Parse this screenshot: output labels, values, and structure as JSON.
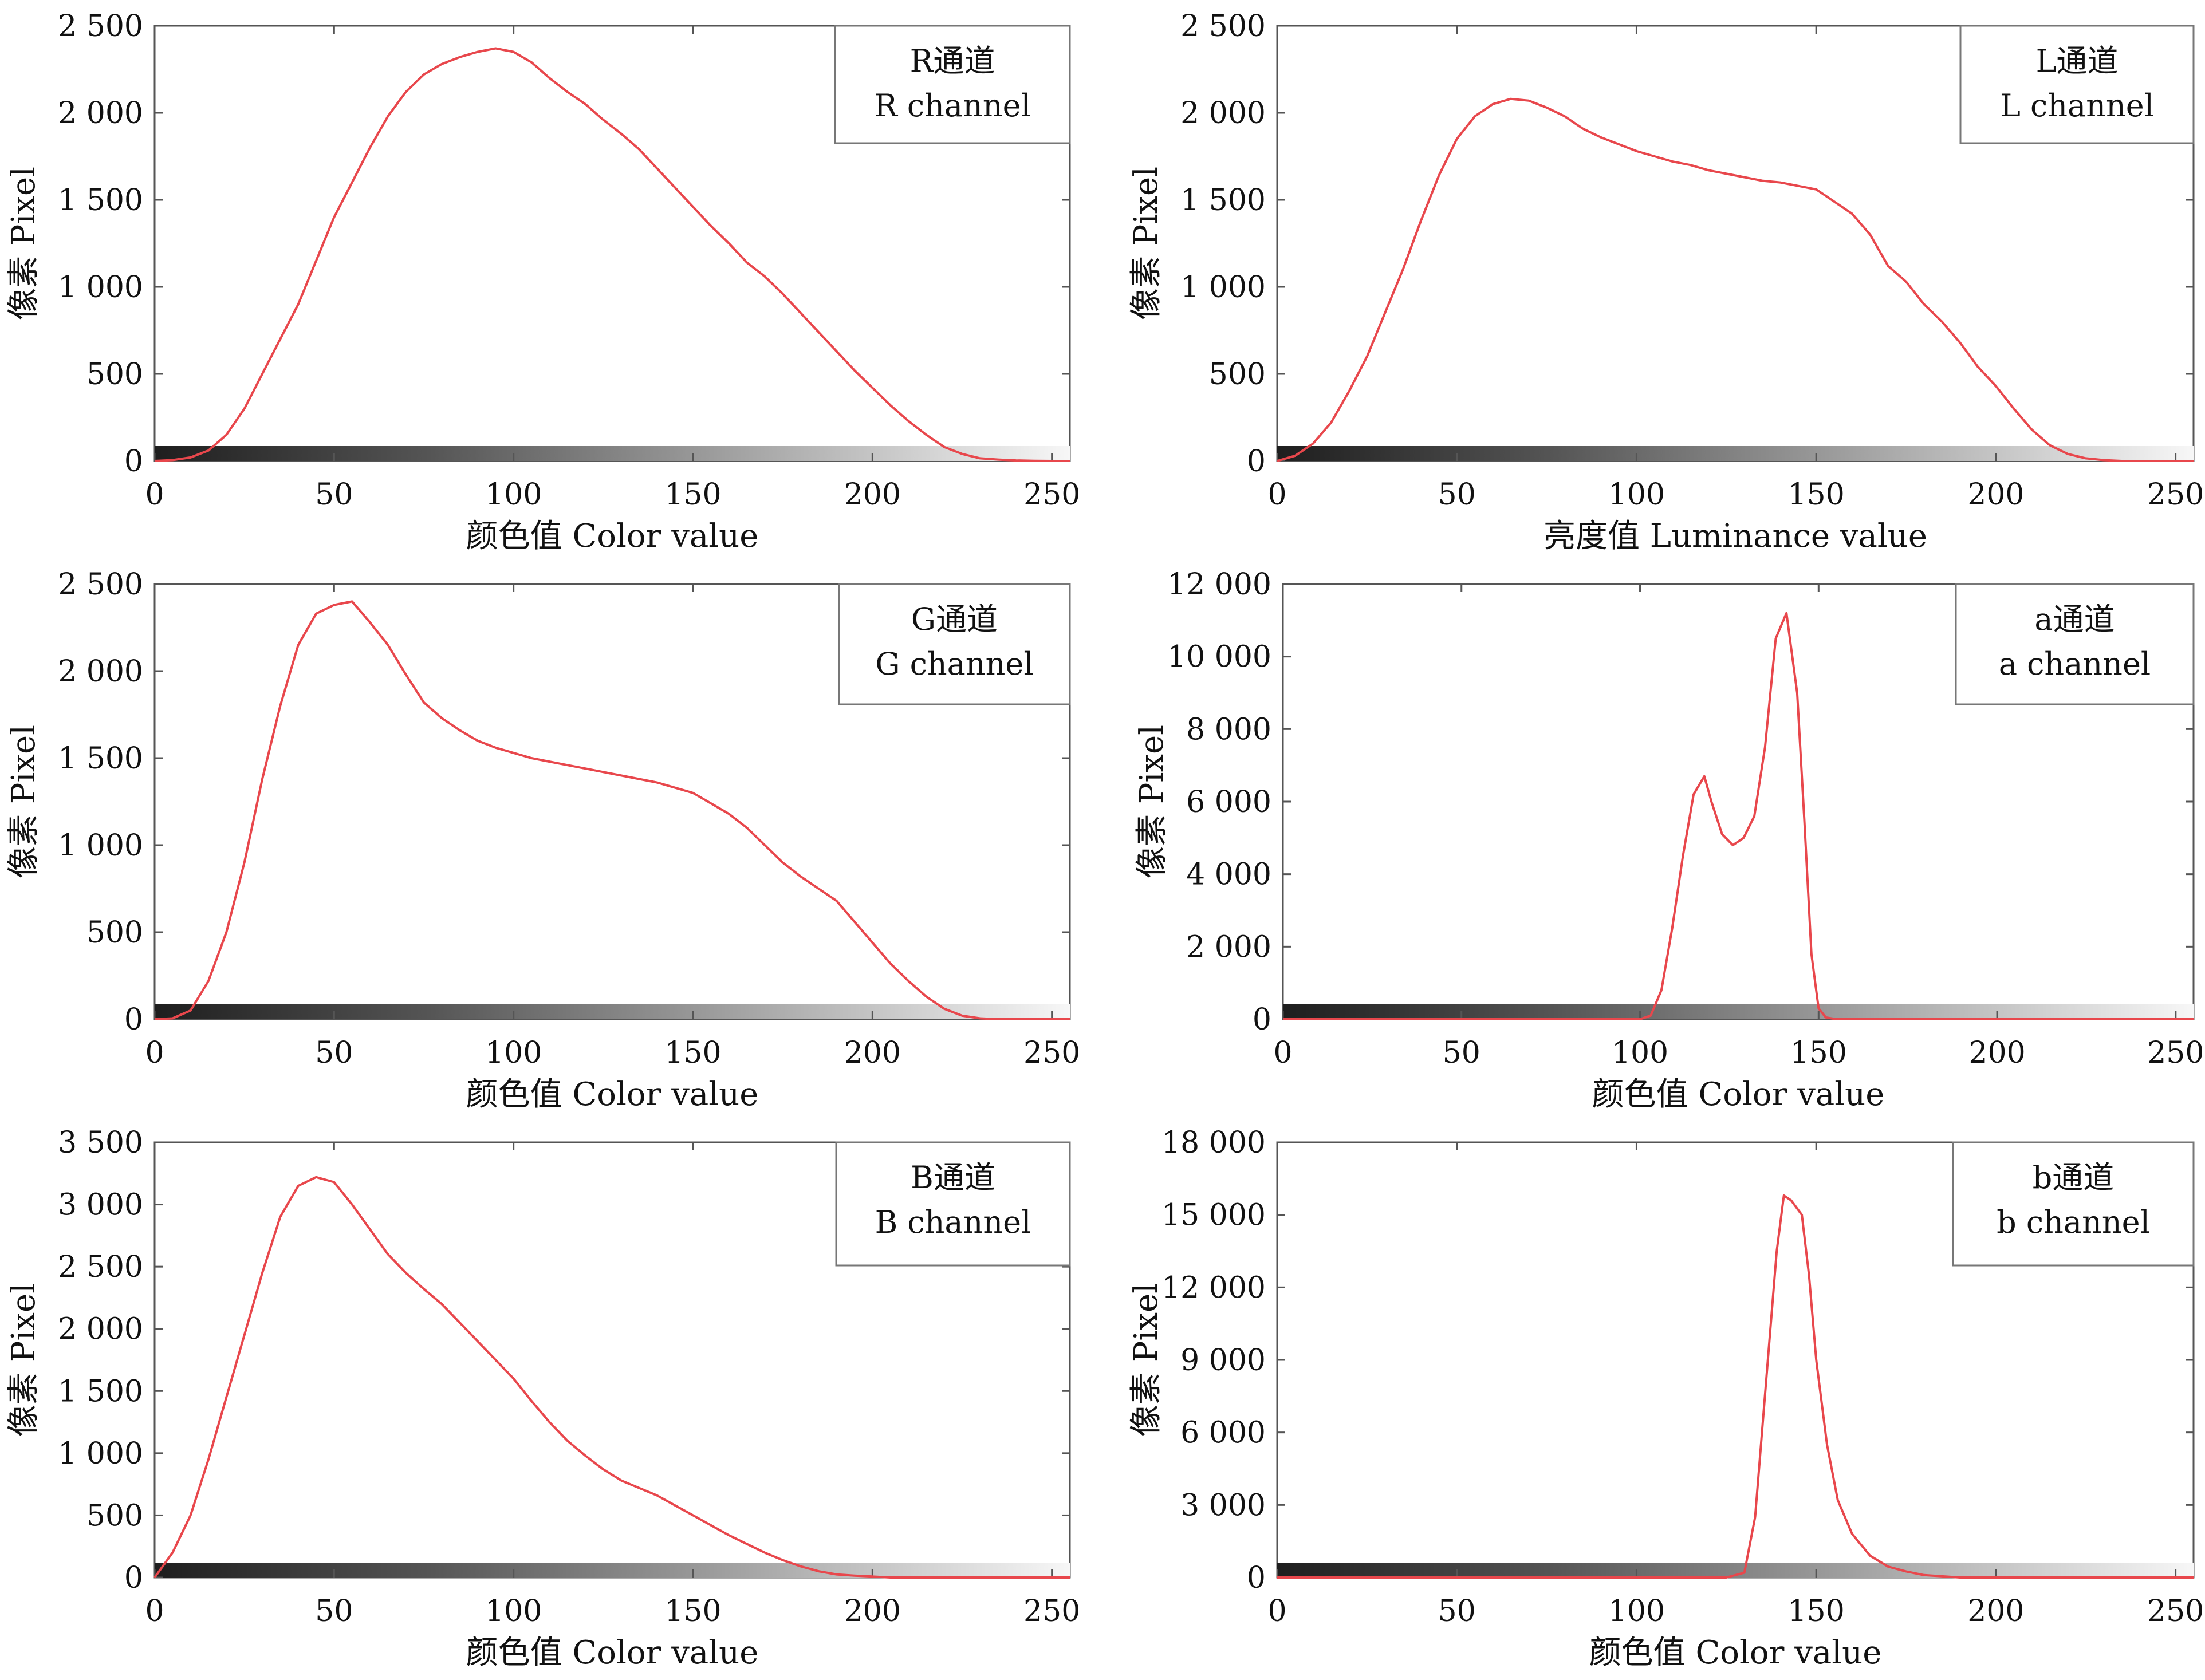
{
  "chart_data": [
    {
      "type": "area",
      "id": "r",
      "legend": [
        "R通道",
        "R channel"
      ],
      "xlabel": "颜色值 Color value",
      "ylabel": "像素 Pixel",
      "xlim": [
        0,
        255
      ],
      "ylim": [
        0,
        2500
      ],
      "xticks": [
        0,
        50,
        100,
        150,
        200,
        250
      ],
      "yticks": [
        0,
        500,
        1000,
        1500,
        2000,
        2500
      ],
      "yticklabels": [
        "0",
        "500",
        "1 000",
        "1 500",
        "2 000",
        "2 500"
      ],
      "line_color": "#e8474c",
      "series": [
        {
          "x": [
            0,
            5,
            10,
            15,
            20,
            25,
            30,
            35,
            40,
            45,
            50,
            55,
            60,
            65,
            70,
            75,
            80,
            85,
            90,
            95,
            100,
            105,
            110,
            115,
            120,
            125,
            130,
            135,
            140,
            145,
            150,
            155,
            160,
            165,
            170,
            175,
            180,
            185,
            190,
            195,
            200,
            205,
            210,
            215,
            220,
            225,
            230,
            235,
            240,
            245,
            250,
            255
          ],
          "values": [
            0,
            5,
            20,
            60,
            150,
            300,
            500,
            700,
            900,
            1150,
            1400,
            1600,
            1800,
            1980,
            2120,
            2220,
            2280,
            2320,
            2350,
            2370,
            2350,
            2290,
            2200,
            2120,
            2050,
            1960,
            1880,
            1790,
            1680,
            1570,
            1460,
            1350,
            1250,
            1140,
            1060,
            960,
            850,
            740,
            630,
            520,
            420,
            320,
            230,
            150,
            80,
            40,
            15,
            8,
            3,
            1,
            0,
            0
          ]
        }
      ]
    },
    {
      "type": "area",
      "id": "l",
      "legend": [
        "L通道",
        "L channel"
      ],
      "xlabel": "亮度值 Luminance value",
      "ylabel": "像素 Pixel",
      "xlim": [
        0,
        255
      ],
      "ylim": [
        0,
        2500
      ],
      "xticks": [
        0,
        50,
        100,
        150,
        200,
        250
      ],
      "yticks": [
        0,
        500,
        1000,
        1500,
        2000,
        2500
      ],
      "yticklabels": [
        "0",
        "500",
        "1 000",
        "1 500",
        "2 000",
        "2 500"
      ],
      "line_color": "#e8474c",
      "series": [
        {
          "x": [
            0,
            5,
            10,
            15,
            20,
            25,
            30,
            35,
            40,
            45,
            50,
            55,
            60,
            65,
            70,
            75,
            80,
            85,
            90,
            95,
            100,
            105,
            110,
            115,
            120,
            125,
            130,
            135,
            140,
            145,
            150,
            155,
            160,
            165,
            170,
            175,
            180,
            185,
            190,
            195,
            200,
            205,
            210,
            215,
            220,
            225,
            230,
            235,
            240,
            245,
            250,
            255
          ],
          "values": [
            0,
            30,
            100,
            220,
            400,
            600,
            850,
            1100,
            1380,
            1640,
            1850,
            1980,
            2050,
            2080,
            2070,
            2030,
            1980,
            1910,
            1860,
            1820,
            1780,
            1750,
            1720,
            1700,
            1670,
            1650,
            1630,
            1610,
            1600,
            1580,
            1560,
            1490,
            1420,
            1300,
            1120,
            1030,
            900,
            800,
            680,
            540,
            430,
            300,
            180,
            90,
            40,
            15,
            5,
            0,
            0,
            0,
            0,
            0
          ]
        }
      ]
    },
    {
      "type": "area",
      "id": "g",
      "legend": [
        "G通道",
        "G channel"
      ],
      "xlabel": "颜色值 Color value",
      "ylabel": "像素 Pixel",
      "xlim": [
        0,
        255
      ],
      "ylim": [
        0,
        2500
      ],
      "xticks": [
        0,
        50,
        100,
        150,
        200,
        250
      ],
      "yticks": [
        0,
        500,
        1000,
        1500,
        2000,
        2500
      ],
      "yticklabels": [
        "0",
        "500",
        "1 000",
        "1 500",
        "2 000",
        "2 500"
      ],
      "line_color": "#e8474c",
      "series": [
        {
          "x": [
            0,
            5,
            10,
            15,
            20,
            25,
            30,
            35,
            40,
            45,
            50,
            55,
            60,
            65,
            70,
            75,
            80,
            85,
            90,
            95,
            100,
            105,
            110,
            115,
            120,
            125,
            130,
            135,
            140,
            145,
            150,
            155,
            160,
            165,
            170,
            175,
            180,
            185,
            190,
            195,
            200,
            205,
            210,
            215,
            220,
            225,
            230,
            235,
            240,
            245,
            250,
            255
          ],
          "values": [
            0,
            5,
            50,
            220,
            500,
            900,
            1380,
            1800,
            2150,
            2330,
            2380,
            2400,
            2280,
            2150,
            1980,
            1820,
            1730,
            1660,
            1600,
            1560,
            1530,
            1500,
            1480,
            1460,
            1440,
            1420,
            1400,
            1380,
            1360,
            1330,
            1300,
            1240,
            1180,
            1100,
            1000,
            900,
            820,
            750,
            680,
            560,
            440,
            320,
            220,
            130,
            60,
            20,
            5,
            0,
            0,
            0,
            0,
            0
          ]
        }
      ]
    },
    {
      "type": "area",
      "id": "a",
      "legend": [
        "a通道",
        "a channel"
      ],
      "xlabel": "颜色值 Color value",
      "ylabel": "像素 Pixel",
      "xlim": [
        0,
        255
      ],
      "ylim": [
        0,
        12000
      ],
      "xticks": [
        0,
        50,
        100,
        150,
        200,
        250
      ],
      "yticks": [
        0,
        2000,
        4000,
        6000,
        8000,
        10000,
        12000
      ],
      "yticklabels": [
        "0",
        "2 000",
        "4 000",
        "6 000",
        "8 000",
        "10 000",
        "12 000"
      ],
      "line_color": "#e8474c",
      "series": [
        {
          "x": [
            0,
            95,
            100,
            103,
            106,
            109,
            112,
            115,
            118,
            120,
            123,
            126,
            129,
            132,
            135,
            138,
            141,
            144,
            146,
            148,
            150,
            152,
            155,
            255
          ],
          "values": [
            0,
            0,
            0,
            100,
            800,
            2500,
            4500,
            6200,
            6700,
            6000,
            5100,
            4800,
            5000,
            5600,
            7500,
            10500,
            11200,
            9000,
            5500,
            1800,
            300,
            50,
            0,
            0
          ]
        }
      ]
    },
    {
      "type": "area",
      "id": "b",
      "legend": [
        "B通道",
        "B channel"
      ],
      "xlabel": "颜色值 Color value",
      "ylabel": "像素 Pixel",
      "xlim": [
        0,
        255
      ],
      "ylim": [
        0,
        3500
      ],
      "xticks": [
        0,
        50,
        100,
        150,
        200,
        250
      ],
      "yticks": [
        0,
        500,
        1000,
        1500,
        2000,
        2500,
        3000,
        3500
      ],
      "yticklabels": [
        "0",
        "500",
        "1 000",
        "1 500",
        "2 000",
        "2 500",
        "3 000",
        "3 500"
      ],
      "line_color": "#e8474c",
      "series": [
        {
          "x": [
            0,
            5,
            10,
            15,
            20,
            25,
            30,
            35,
            40,
            45,
            50,
            55,
            60,
            65,
            70,
            75,
            80,
            85,
            90,
            95,
            100,
            105,
            110,
            115,
            120,
            125,
            130,
            135,
            140,
            145,
            150,
            155,
            160,
            165,
            170,
            175,
            180,
            185,
            190,
            195,
            200,
            205,
            210,
            215,
            220,
            225,
            230,
            235,
            240,
            245,
            250,
            255
          ],
          "values": [
            0,
            200,
            500,
            950,
            1450,
            1950,
            2450,
            2900,
            3150,
            3220,
            3180,
            3000,
            2800,
            2600,
            2450,
            2320,
            2200,
            2050,
            1900,
            1750,
            1600,
            1420,
            1250,
            1100,
            980,
            870,
            780,
            720,
            660,
            580,
            500,
            420,
            340,
            270,
            200,
            140,
            90,
            50,
            25,
            15,
            8,
            0,
            0,
            0,
            0,
            0,
            0,
            0,
            0,
            0,
            0,
            0
          ]
        }
      ]
    },
    {
      "type": "area",
      "id": "b2",
      "legend": [
        "b通道",
        "b channel"
      ],
      "xlabel": "颜色值 Color value",
      "ylabel": "像素 Pixel",
      "xlim": [
        0,
        255
      ],
      "ylim": [
        0,
        18000
      ],
      "xticks": [
        0,
        50,
        100,
        150,
        200,
        250
      ],
      "yticks": [
        0,
        3000,
        6000,
        9000,
        12000,
        15000,
        18000
      ],
      "yticklabels": [
        "0",
        "3 000",
        "6 000",
        "9 000",
        "12 000",
        "15 000",
        "18 000"
      ],
      "line_color": "#e8474c",
      "series": [
        {
          "x": [
            0,
            125,
            130,
            133,
            136,
            139,
            141,
            143,
            146,
            148,
            150,
            153,
            156,
            160,
            165,
            170,
            175,
            180,
            185,
            190,
            255
          ],
          "values": [
            0,
            0,
            200,
            2500,
            8000,
            13500,
            15800,
            15600,
            15000,
            12500,
            9000,
            5500,
            3200,
            1800,
            900,
            450,
            250,
            100,
            50,
            0,
            0
          ]
        }
      ]
    }
  ]
}
